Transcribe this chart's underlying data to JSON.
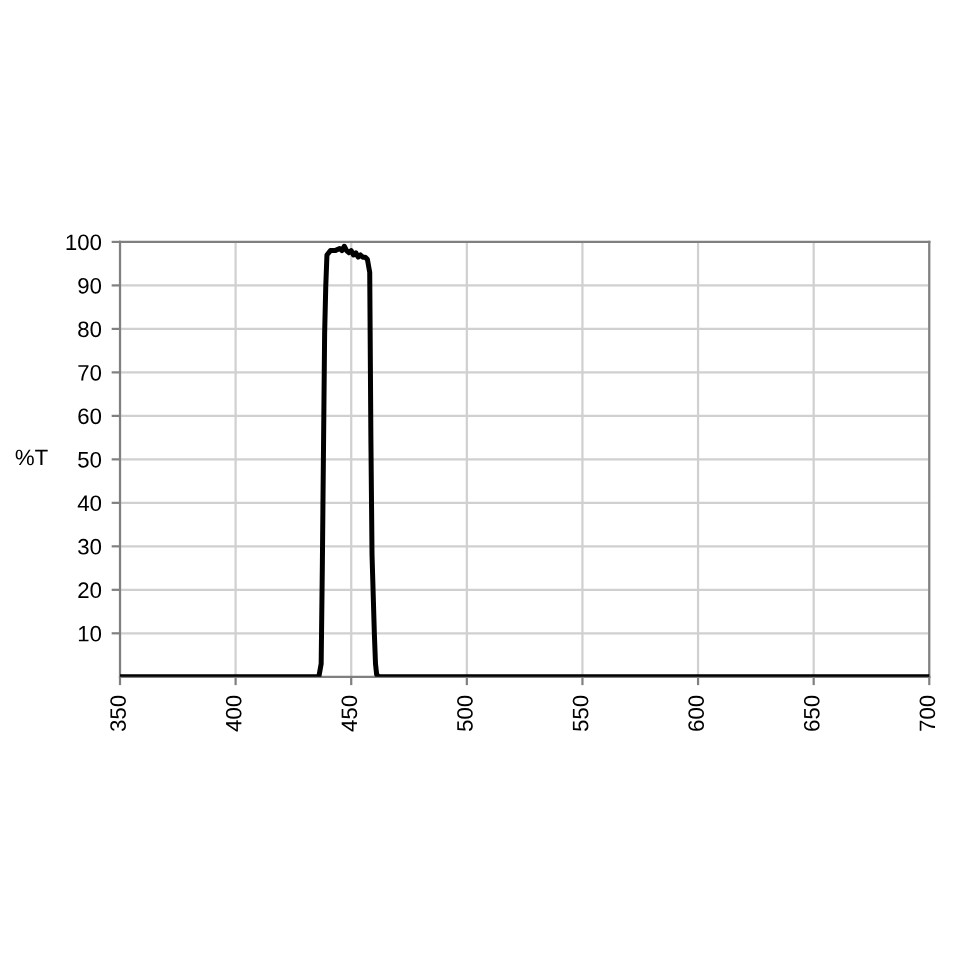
{
  "chart_data": {
    "type": "line",
    "ylabel": "%T",
    "x": [
      350,
      436,
      437,
      437.5,
      438,
      438.5,
      439,
      439.5,
      441,
      443,
      445,
      446,
      447,
      448,
      449,
      450,
      451,
      452,
      453,
      454,
      455,
      456,
      457,
      458,
      458.5,
      459,
      460,
      460.5,
      461,
      462,
      700
    ],
    "series": [
      {
        "color": "#000000",
        "values": [
          0,
          0,
          3,
          25,
          52,
          79,
          90,
          97,
          98,
          98,
          98.5,
          98,
          99,
          98,
          97.5,
          98,
          97,
          97.5,
          96.5,
          97,
          96.5,
          96.5,
          96,
          93,
          55,
          28,
          10,
          3,
          0.5,
          0,
          0
        ]
      }
    ],
    "xlim": [
      350,
      700
    ],
    "xticks": [
      350,
      400,
      450,
      500,
      550,
      600,
      650,
      700
    ],
    "ylim": [
      0,
      100
    ],
    "yticks": [
      10,
      20,
      30,
      40,
      50,
      60,
      70,
      80,
      90,
      100
    ],
    "grid": true,
    "marker": "none",
    "line_style": "solid"
  }
}
